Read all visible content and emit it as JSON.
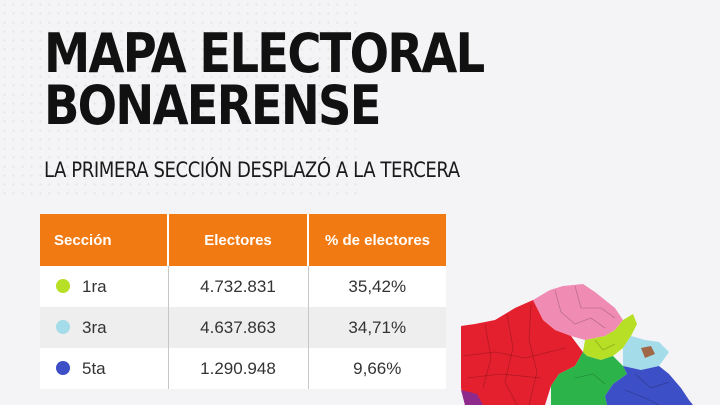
{
  "header": {
    "title_line1": "MAPA ELECTORAL",
    "title_line2": "BONAERENSE",
    "subtitle": "LA PRIMERA SECCIÓN DESPLAZÓ A LA TERCERA"
  },
  "table": {
    "columns": [
      "Sección",
      "Electores",
      "% de electores"
    ],
    "rows": [
      {
        "seccion": "1ra",
        "electores": "4.732.831",
        "porcentaje": "35,42%",
        "color": "#b6df25"
      },
      {
        "seccion": "3ra",
        "electores": "4.637.863",
        "porcentaje": "34,71%",
        "color": "#a4dcea"
      },
      {
        "seccion": "5ta",
        "electores": "1.290.948",
        "porcentaje": "9,66%",
        "color": "#3d4fc6"
      }
    ]
  },
  "colors": {
    "header_bg": "#f27a12",
    "map_red": "#e5202e",
    "map_pink": "#f08cb4",
    "map_lime": "#b6df25",
    "map_lightblue": "#a4dcea",
    "map_blue": "#3d4fc6",
    "map_green": "#2cb44a",
    "map_purple": "#8e2a8c",
    "map_brown": "#a06846"
  }
}
